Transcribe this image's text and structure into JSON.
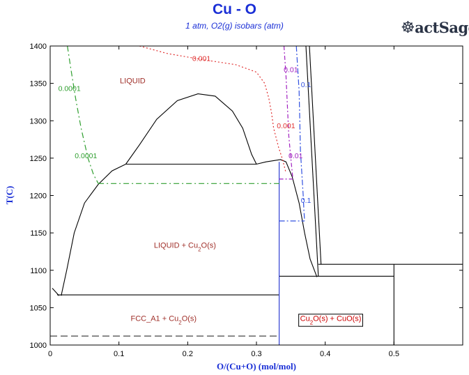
{
  "chart_data": {
    "type": "line",
    "title": "Cu - O",
    "subtitle": "1 atm, O2(g) isobars (atm)",
    "logo": "FactSage",
    "xlabel": "O/(Cu+O) (mol/mol)",
    "ylabel": "T(C)",
    "xlim": [
      0,
      0.6
    ],
    "ylim": [
      1000,
      1400
    ],
    "xticks": [
      0,
      0.1,
      0.2,
      0.3,
      0.4,
      0.5
    ],
    "yticks": [
      1000,
      1050,
      1100,
      1150,
      1200,
      1250,
      1300,
      1350,
      1400
    ],
    "grid": false,
    "region_labels": [
      {
        "text": "LIQUID",
        "x": 0.12,
        "y": 1350,
        "color": "#a0302a"
      },
      {
        "text": "LIQUID + Cu2O(s)",
        "x": 0.196,
        "y": 1130,
        "color": "#a0302a",
        "sub": "2"
      },
      {
        "text": "FCC_A1 + Cu2O(s)",
        "x": 0.165,
        "y": 1032,
        "color": "#a0302a",
        "sub": "2"
      },
      {
        "text": "Cu2O(s) + CuO(s)",
        "x": 0.408,
        "y": 1032,
        "color": "#cc0000",
        "sub": "2",
        "boxed": true
      }
    ],
    "isobar_labels": [
      {
        "text": "0.0001",
        "x": 0.028,
        "y": 1340,
        "color": "#2e9e2e"
      },
      {
        "text": "0.0001",
        "x": 0.052,
        "y": 1250,
        "color": "#2e9e2e"
      },
      {
        "text": "0.001",
        "x": 0.22,
        "y": 1380,
        "color": "#e03030"
      },
      {
        "text": "0.001",
        "x": 0.343,
        "y": 1290,
        "color": "#e03030"
      },
      {
        "text": "0.01",
        "x": 0.35,
        "y": 1365,
        "color": "#a020c0"
      },
      {
        "text": "0.01",
        "x": 0.357,
        "y": 1250,
        "color": "#a020c0"
      },
      {
        "text": "0.1",
        "x": 0.372,
        "y": 1345,
        "color": "#3050e0"
      },
      {
        "text": "0.1",
        "x": 0.372,
        "y": 1190,
        "color": "#3050e0"
      }
    ],
    "series": [
      {
        "style": "boundary",
        "color": "#000000",
        "points": [
          [
            0.003,
            1076
          ],
          [
            0.013,
            1066
          ]
        ]
      },
      {
        "style": "boundary",
        "color": "#000000",
        "points": [
          [
            0.016,
            1066
          ],
          [
            0.024,
            1100
          ],
          [
            0.035,
            1150
          ],
          [
            0.05,
            1190
          ],
          [
            0.07,
            1215
          ],
          [
            0.09,
            1233
          ],
          [
            0.11,
            1242
          ]
        ]
      },
      {
        "style": "boundary",
        "color": "#000000",
        "points": [
          [
            0.11,
            1242
          ],
          [
            0.3,
            1242
          ]
        ]
      },
      {
        "style": "boundary",
        "color": "#000000",
        "points": [
          [
            0.11,
            1242
          ],
          [
            0.13,
            1268
          ],
          [
            0.155,
            1302
          ],
          [
            0.185,
            1327
          ],
          [
            0.215,
            1336
          ],
          [
            0.24,
            1333
          ],
          [
            0.265,
            1313
          ],
          [
            0.28,
            1290
          ],
          [
            0.293,
            1255
          ],
          [
            0.3,
            1242
          ]
        ]
      },
      {
        "style": "boundary",
        "color": "#000000",
        "points": [
          [
            0.3,
            1242
          ],
          [
            0.314,
            1245
          ],
          [
            0.335,
            1248
          ],
          [
            0.343,
            1245
          ],
          [
            0.352,
            1225
          ],
          [
            0.362,
            1190
          ],
          [
            0.37,
            1150
          ],
          [
            0.378,
            1115
          ],
          [
            0.388,
            1091
          ]
        ]
      },
      {
        "style": "boundary",
        "color": "#000000",
        "points": [
          [
            0.01,
            1067
          ],
          [
            0.333,
            1067
          ]
        ]
      },
      {
        "style": "boundary",
        "color": "#000000",
        "points": [
          [
            0.333,
            1092
          ],
          [
            0.5,
            1092
          ]
        ]
      },
      {
        "style": "boundary",
        "color": "#000000",
        "points": [
          [
            0.39,
            1108
          ],
          [
            0.6,
            1108
          ]
        ]
      },
      {
        "style": "boundary",
        "color": "#000000",
        "points": [
          [
            0.5,
            1108
          ],
          [
            0.5,
            1000
          ]
        ]
      },
      {
        "style": "boundary",
        "color": "#000000",
        "points": [
          [
            0.372,
            1400
          ],
          [
            0.39,
            1092
          ]
        ]
      },
      {
        "style": "boundary",
        "color": "#000000",
        "points": [
          [
            0.377,
            1400
          ],
          [
            0.394,
            1108
          ]
        ]
      },
      {
        "style": "boundary",
        "color": "#2030d0",
        "points": [
          [
            0.333,
            1245
          ],
          [
            0.333,
            1000
          ]
        ]
      },
      {
        "style": "isobar",
        "name": "0.0001",
        "color": "#2e9e2e",
        "dash": "8 4 2 4",
        "points": [
          [
            0.025,
            1400
          ],
          [
            0.03,
            1370
          ],
          [
            0.037,
            1330
          ],
          [
            0.045,
            1290
          ],
          [
            0.055,
            1250
          ],
          [
            0.063,
            1228
          ],
          [
            0.07,
            1216
          ]
        ]
      },
      {
        "style": "isobar",
        "name": "0.0001",
        "color": "#2e9e2e",
        "dash": "8 4 2 4",
        "points": [
          [
            0.07,
            1216
          ],
          [
            0.333,
            1216
          ]
        ]
      },
      {
        "style": "isobar",
        "name": "0.001",
        "color": "#e03030",
        "dash": "2 3",
        "points": [
          [
            0.13,
            1400
          ],
          [
            0.17,
            1390
          ],
          [
            0.22,
            1382
          ],
          [
            0.27,
            1375
          ],
          [
            0.3,
            1365
          ],
          [
            0.312,
            1350
          ],
          [
            0.318,
            1330
          ],
          [
            0.322,
            1310
          ],
          [
            0.325,
            1290
          ],
          [
            0.332,
            1265
          ],
          [
            0.338,
            1248
          ],
          [
            0.343,
            1230
          ]
        ]
      },
      {
        "style": "isobar",
        "name": "0.01",
        "color": "#a020c0",
        "dash": "6 3 2 3",
        "points": [
          [
            0.34,
            1400
          ],
          [
            0.343,
            1360
          ],
          [
            0.345,
            1320
          ],
          [
            0.347,
            1280
          ],
          [
            0.35,
            1250
          ],
          [
            0.353,
            1222
          ]
        ]
      },
      {
        "style": "isobar",
        "name": "0.01",
        "color": "#a020c0",
        "dash": "6 3 2 3",
        "points": [
          [
            0.333,
            1222
          ],
          [
            0.353,
            1222
          ]
        ]
      },
      {
        "style": "isobar",
        "name": "0.1",
        "color": "#3050e0",
        "dash": "8 3 2 3",
        "points": [
          [
            0.358,
            1400
          ],
          [
            0.36,
            1370
          ],
          [
            0.362,
            1340
          ],
          [
            0.363,
            1300
          ],
          [
            0.364,
            1260
          ],
          [
            0.366,
            1230
          ],
          [
            0.368,
            1200
          ],
          [
            0.369,
            1180
          ],
          [
            0.37,
            1166
          ]
        ]
      },
      {
        "style": "isobar",
        "name": "0.1",
        "color": "#3050e0",
        "dash": "8 3 2 3",
        "points": [
          [
            0.333,
            1166
          ],
          [
            0.37,
            1166
          ]
        ]
      },
      {
        "style": "isobar",
        "name": "fcc",
        "color": "#444444",
        "dash": "10 5",
        "points": [
          [
            0.0,
            1012
          ],
          [
            0.333,
            1012
          ]
        ]
      }
    ]
  }
}
